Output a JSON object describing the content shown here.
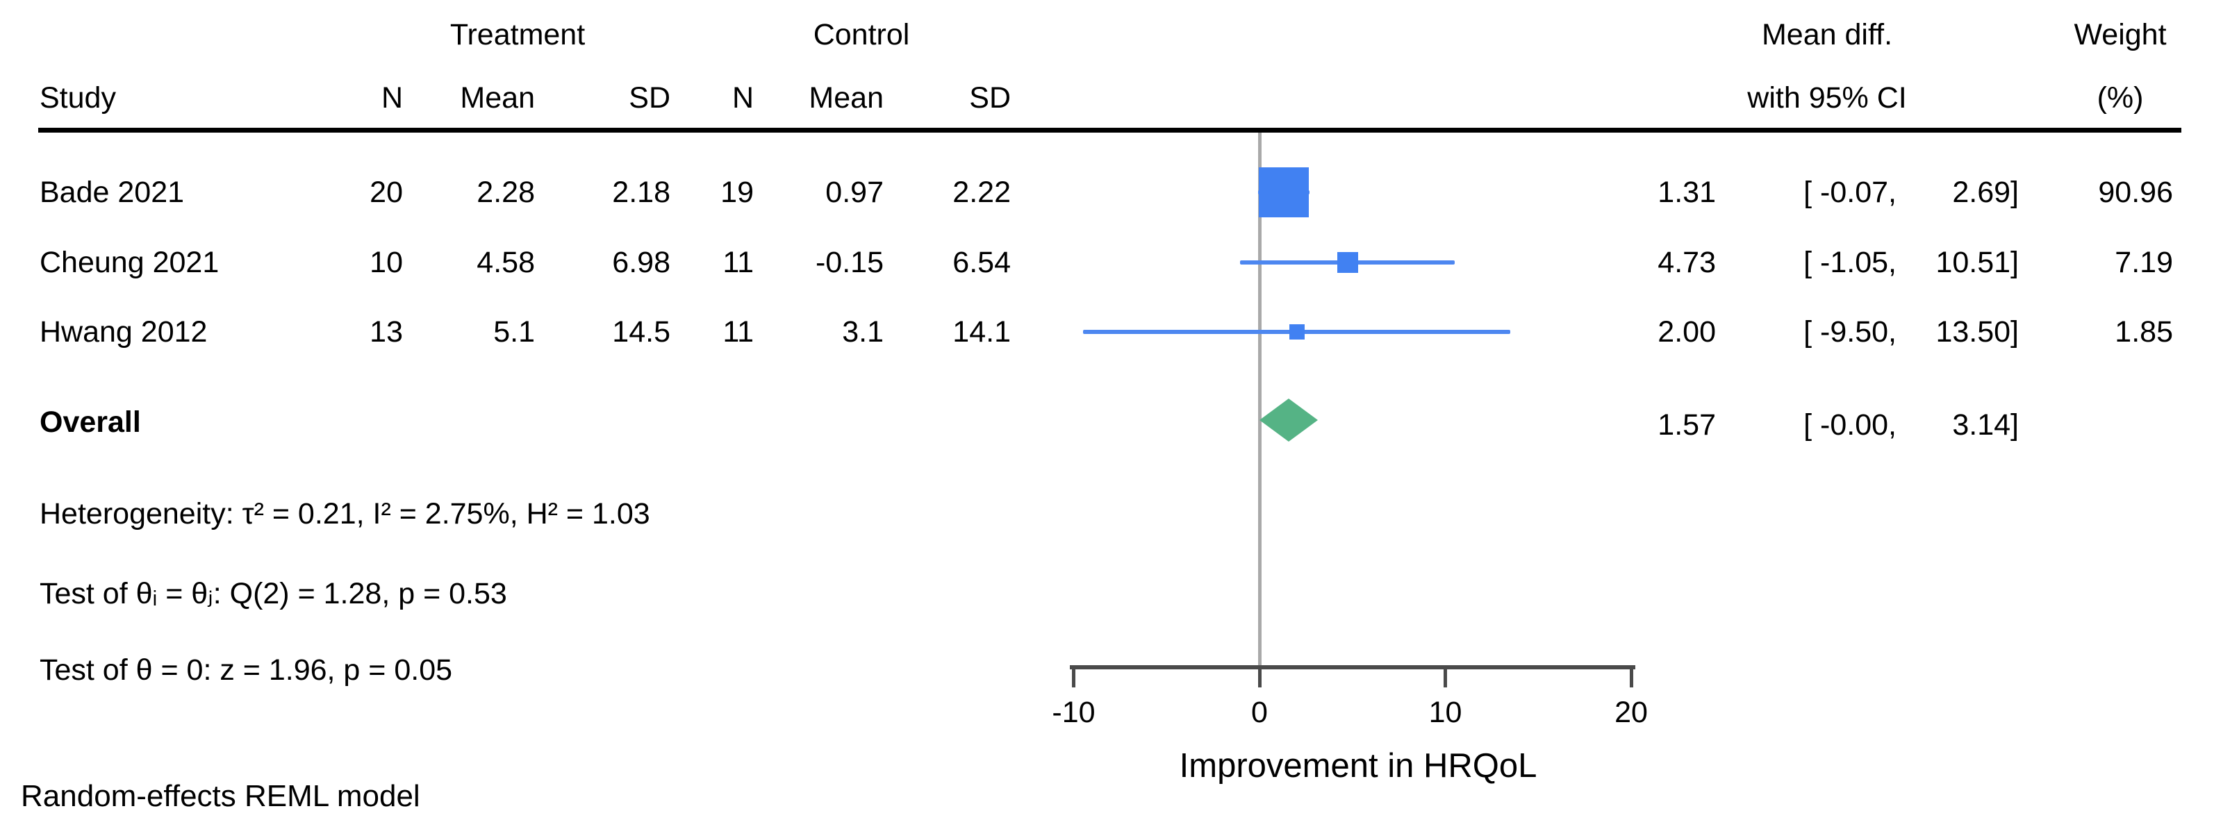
{
  "table_header": {
    "treatment_group": "Treatment",
    "control_group": "Control",
    "study": "Study",
    "treatment_n": "N",
    "treatment_mean": "Mean",
    "treatment_sd": "SD",
    "control_n": "N",
    "control_mean": "Mean",
    "control_sd": "SD",
    "effect_line1": "Mean diff.",
    "effect_line2": "with 95% CI",
    "weight_line1": "Weight",
    "weight_line2": "(%)"
  },
  "stats": {
    "overall_label": "Overall",
    "heterogeneity": "Heterogeneity: τ² = 0.21, I² = 2.75%, H² = 1.03",
    "test_between": "Test of θᵢ = θⱼ: Q(2) = 1.28, p = 0.53",
    "test_zero": "Test of θ = 0: z = 1.96, p = 0.05"
  },
  "footer": {
    "model_label": "Random-effects REML model"
  },
  "colors": {
    "marker_blue": "#4181f2",
    "ci_line_blue": "#4d87f0",
    "diamond_green": "#55b385",
    "zero_line_gray": "#a9a9a9",
    "axis_gray": "#4a4a4a"
  },
  "chart_data": {
    "type": "forest",
    "xlabel": "Improvement in HRQoL",
    "x_ticks": [
      -10,
      0,
      10,
      20
    ],
    "xlim": [
      -10.3,
      20.3
    ],
    "zero_reference": 0,
    "grid": false,
    "legend_position": "none",
    "studies": [
      {
        "study": "Bade 2021",
        "treatment": {
          "n": "20",
          "mean": "2.28",
          "sd": "2.18"
        },
        "control": {
          "n": "19",
          "mean": "0.97",
          "sd": "2.22"
        },
        "est": 1.31,
        "ci_low": -0.07,
        "ci_high": 2.69,
        "weight": 90.96,
        "est_text": "1.31",
        "ci_low_text": "[ -0.07,",
        "ci_high_text": "2.69]",
        "weight_text": "90.96"
      },
      {
        "study": "Cheung 2021",
        "treatment": {
          "n": "10",
          "mean": "4.58",
          "sd": "6.98"
        },
        "control": {
          "n": "11",
          "mean": "-0.15",
          "sd": "6.54"
        },
        "est": 4.73,
        "ci_low": -1.05,
        "ci_high": 10.51,
        "weight": 7.19,
        "est_text": "4.73",
        "ci_low_text": "[ -1.05,",
        "ci_high_text": "10.51]",
        "weight_text": "7.19"
      },
      {
        "study": "Hwang 2012",
        "treatment": {
          "n": "13",
          "mean": "5.1",
          "sd": "14.5"
        },
        "control": {
          "n": "11",
          "mean": "3.1",
          "sd": "14.1"
        },
        "est": 2.0,
        "ci_low": -9.5,
        "ci_high": 13.5,
        "weight": 1.85,
        "est_text": "2.00",
        "ci_low_text": "[ -9.50,",
        "ci_high_text": "13.50]",
        "weight_text": "1.85"
      }
    ],
    "overall": {
      "est": 1.57,
      "ci_low": -0.0,
      "ci_high": 3.14,
      "est_text": "1.57",
      "ci_low_text": "[ -0.00,",
      "ci_high_text": "3.14]"
    }
  }
}
